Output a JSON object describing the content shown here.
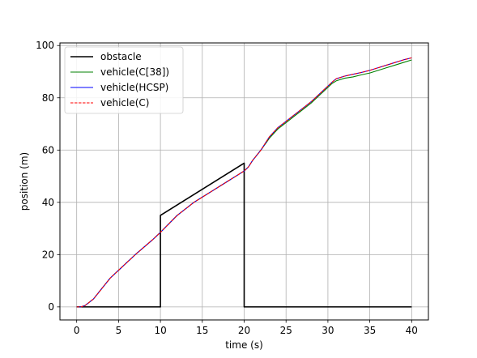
{
  "chart_data": {
    "type": "line",
    "title": "",
    "xlabel": "time (s)",
    "ylabel": "position (m)",
    "xlim": [
      -2,
      42
    ],
    "ylim": [
      -5,
      101
    ],
    "xticks": [
      0,
      5,
      10,
      15,
      20,
      25,
      30,
      35,
      40
    ],
    "yticks": [
      0,
      20,
      40,
      60,
      80,
      100
    ],
    "grid": true,
    "legend_position": "top-left",
    "series": [
      {
        "name": "obstacle",
        "color": "#000000",
        "style": "solid",
        "x": [
          0,
          10,
          10,
          20,
          20,
          40
        ],
        "y": [
          0,
          0,
          35,
          55,
          0,
          0
        ]
      },
      {
        "name": "vehicle(C[38])",
        "color": "#008000",
        "style": "solid",
        "x": [
          0,
          0.5,
          1,
          2,
          3,
          4,
          5,
          7,
          9,
          10,
          12,
          14,
          16,
          18,
          19,
          20,
          20.5,
          21,
          22,
          23,
          24,
          25,
          26,
          27,
          28,
          29,
          30,
          30.5,
          31,
          32,
          33,
          34,
          35,
          36,
          37,
          38,
          39,
          40
        ],
        "y": [
          0,
          0,
          0.5,
          3,
          7,
          11,
          14,
          20,
          25.5,
          28.5,
          35,
          40,
          44,
          48,
          50,
          52,
          53.5,
          56,
          60,
          64.5,
          68,
          70.5,
          73,
          75.5,
          78,
          81,
          84,
          85.5,
          86.5,
          87.5,
          88,
          88.8,
          89.5,
          90.5,
          91.5,
          92.5,
          93.5,
          94.5
        ]
      },
      {
        "name": "vehicle(HCSP)",
        "color": "#0000ff",
        "style": "solid",
        "x": [
          0,
          0.5,
          1,
          2,
          3,
          4,
          5,
          7,
          9,
          10,
          12,
          14,
          16,
          18,
          19,
          20,
          20.5,
          21,
          22,
          23,
          24,
          25,
          26,
          27,
          28,
          29,
          30,
          30.5,
          31,
          32,
          33,
          34,
          35,
          36,
          37,
          38,
          39,
          40
        ],
        "y": [
          0,
          0,
          0.5,
          3,
          7,
          11,
          14,
          20,
          25.5,
          28.5,
          35,
          40,
          44,
          48,
          50,
          52,
          53.5,
          56,
          60,
          65,
          68.5,
          71,
          73.5,
          76,
          78.5,
          81.5,
          84.5,
          86,
          87.3,
          88.3,
          89,
          89.7,
          90.5,
          91.5,
          92.5,
          93.5,
          94.5,
          95.3
        ]
      },
      {
        "name": "vehicle(C)",
        "color": "#ff0000",
        "style": "dashed",
        "x": [
          0,
          0.5,
          1,
          2,
          3,
          4,
          5,
          7,
          9,
          10,
          12,
          14,
          16,
          18,
          19,
          20,
          20.5,
          21,
          22,
          23,
          24,
          25,
          26,
          27,
          28,
          29,
          30,
          30.5,
          31,
          32,
          33,
          34,
          35,
          36,
          37,
          38,
          39,
          40
        ],
        "y": [
          0,
          0,
          0.5,
          3,
          7,
          11,
          14,
          20,
          25.5,
          28.5,
          35,
          40,
          44,
          48,
          50,
          52,
          53.5,
          56,
          60,
          65,
          68.5,
          71,
          73.5,
          76,
          78.5,
          81.5,
          84.5,
          86,
          87.3,
          88.3,
          89,
          89.7,
          90.5,
          91.5,
          92.5,
          93.5,
          94.5,
          95.3
        ]
      }
    ]
  }
}
